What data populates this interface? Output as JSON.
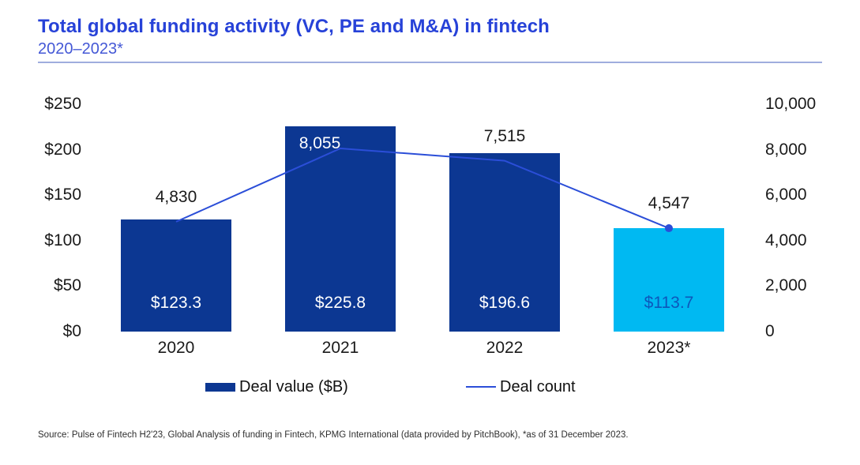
{
  "header": {
    "title": "Total global funding activity (VC, PE and M&A) in fintech",
    "subtitle": "2020–2023*"
  },
  "chart_data": {
    "type": "combo-bar-line",
    "categories": [
      "2020",
      "2021",
      "2022",
      "2023*"
    ],
    "series": [
      {
        "name": "Deal value ($B)",
        "type": "bar",
        "values": [
          123.3,
          225.8,
          196.6,
          113.7
        ],
        "value_labels": [
          "$123.3",
          "$225.8",
          "$196.6",
          "$113.7"
        ],
        "bar_colors": [
          "#0c3792",
          "#0c3792",
          "#0c3792",
          "#00b9f2"
        ],
        "value_label_colors": [
          "#ffffff",
          "#ffffff",
          "#ffffff",
          "#0d57bb"
        ]
      },
      {
        "name": "Deal count",
        "type": "line",
        "values": [
          4830,
          8055,
          7515,
          4547
        ],
        "value_labels": [
          "4,830",
          "8,055",
          "7,515",
          "4,547"
        ],
        "value_label_colors": [
          "#1a1a1a",
          "#ffffff",
          "#1a1a1a",
          "#1a1a1a"
        ],
        "color": "#2b4ed8",
        "endpoint_marker": "filled-circle"
      }
    ],
    "left_axis": {
      "max": 250,
      "ticks": [
        {
          "value": 0,
          "label": "$0"
        },
        {
          "value": 50,
          "label": "$50"
        },
        {
          "value": 100,
          "label": "$100"
        },
        {
          "value": 150,
          "label": "$150"
        },
        {
          "value": 200,
          "label": "$200"
        },
        {
          "value": 250,
          "label": "$250"
        }
      ]
    },
    "right_axis": {
      "max": 10000,
      "ticks": [
        {
          "value": 0,
          "label": "0"
        },
        {
          "value": 2000,
          "label": "2,000"
        },
        {
          "value": 4000,
          "label": "4,000"
        },
        {
          "value": 6000,
          "label": "6,000"
        },
        {
          "value": 8000,
          "label": "8,000"
        },
        {
          "value": 10000,
          "label": "10,000"
        }
      ]
    },
    "grid": false,
    "legend_position": "bottom",
    "title": "Total global funding activity (VC, PE and M&A) in fintech",
    "subtitle": "2020–2023*"
  },
  "source": "Source: Pulse of Fintech H2'23, Global Analysis of funding in Fintech, KPMG International (data provided by PitchBook), *as of 31 December 2023.",
  "colors": {
    "title": "#2742d8",
    "subtitle": "#4458d6",
    "divider": "#9fadde",
    "bar": "#0c3792",
    "bar_highlight": "#00b9f2",
    "line": "#2b4ed8"
  }
}
